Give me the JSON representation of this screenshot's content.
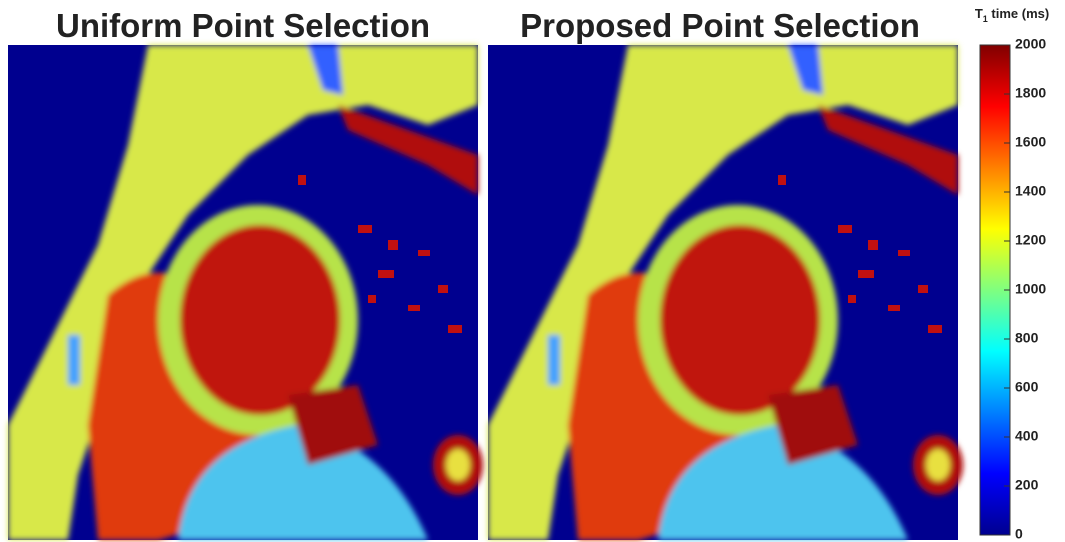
{
  "titles": [
    "Uniform Point Selection",
    "Proposed Point Selection"
  ],
  "colorbar": {
    "label": {
      "main": "T",
      "sub": "1",
      "rest": " time (ms)"
    },
    "lim": [
      0,
      2000
    ],
    "ticks": [
      0,
      200,
      400,
      600,
      800,
      1000,
      1200,
      1400,
      1600,
      1800,
      2000
    ]
  }
}
